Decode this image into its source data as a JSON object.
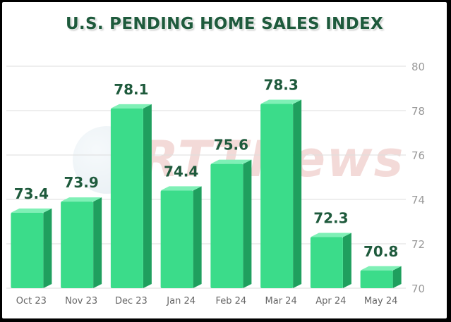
{
  "watermark": "RTTNews",
  "chart_data": {
    "type": "bar",
    "title": "U.S. PENDING HOME SALES INDEX",
    "categories": [
      "Oct 23",
      "Nov 23",
      "Dec 23",
      "Jan 24",
      "Feb 24",
      "Mar 24",
      "Apr 24",
      "May 24"
    ],
    "values": [
      73.4,
      73.9,
      78.1,
      74.4,
      75.6,
      78.3,
      72.3,
      70.8
    ],
    "data_labels": [
      "73.4",
      "73.9",
      "78.1",
      "74.4",
      "75.6",
      "78.3",
      "72.3",
      "70.8"
    ],
    "ylim": [
      70,
      80
    ],
    "yticks": [
      70,
      72,
      74,
      76,
      78,
      80
    ],
    "grid": true,
    "y_axis_side": "right",
    "colors": {
      "bar_front": "#3bdc8a",
      "bar_side": "#1f9f5e",
      "bar_top": "#7ff0b6",
      "label": "#1e5a3c",
      "grid": "#dddddd",
      "tick": "#999999"
    }
  }
}
